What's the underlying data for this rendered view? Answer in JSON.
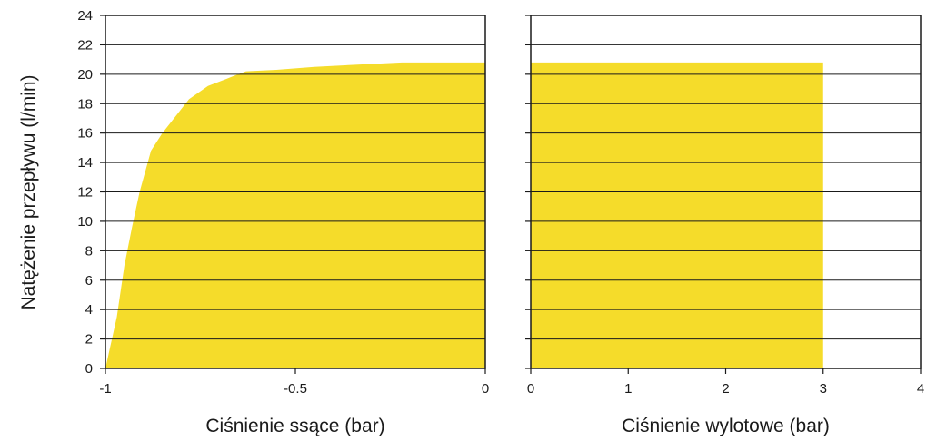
{
  "ylabel": "Natężenie przepływu (l/min)",
  "fill_color": "#f5dc2a",
  "line_color": "#1a1a1a",
  "y_ticks": [
    "0",
    "2",
    "4",
    "6",
    "8",
    "10",
    "12",
    "14",
    "16",
    "18",
    "20",
    "22",
    "24"
  ],
  "chart_data": [
    {
      "type": "area",
      "xlabel": "Ciśnienie ssące (bar)",
      "ylabel": "Natężenie przepływu (l/min)",
      "xlim": [
        -1,
        0
      ],
      "ylim": [
        0,
        24
      ],
      "x_ticks": [
        "-1",
        "-0.5",
        "0"
      ],
      "grid": true,
      "x": [
        -1.0,
        -0.97,
        -0.95,
        -0.93,
        -0.91,
        -0.88,
        -0.85,
        -0.78,
        -0.73,
        -0.68,
        -0.63,
        -0.55,
        -0.45,
        -0.3,
        -0.22,
        -0.1,
        0.0
      ],
      "y": [
        0.0,
        3.5,
        7.0,
        9.6,
        12.0,
        14.8,
        16.0,
        18.3,
        19.2,
        19.7,
        20.2,
        20.3,
        20.5,
        20.7,
        20.8,
        20.8,
        20.8
      ]
    },
    {
      "type": "area",
      "xlabel": "Ciśnienie wylotowe (bar)",
      "xlim": [
        0,
        4
      ],
      "ylim": [
        0,
        24
      ],
      "x_ticks": [
        "0",
        "1",
        "2",
        "3",
        "4"
      ],
      "grid": true,
      "x": [
        0,
        3
      ],
      "y": [
        20.8,
        20.8
      ]
    }
  ]
}
